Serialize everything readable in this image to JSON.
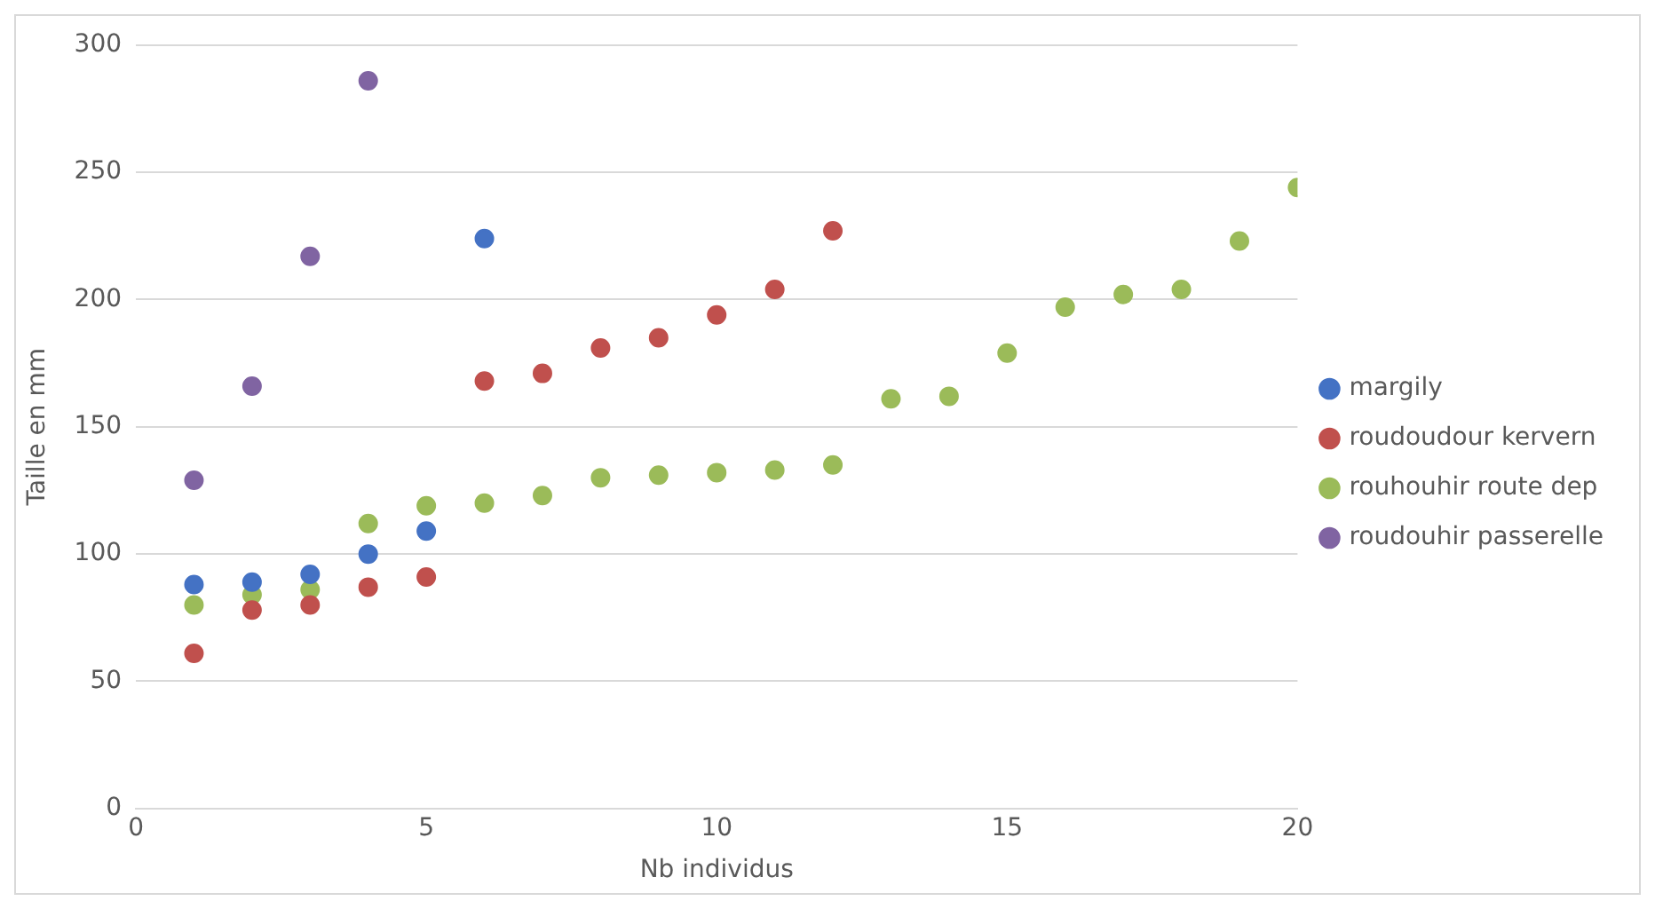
{
  "chart_data": {
    "type": "scatter",
    "xlabel": "Nb individus",
    "ylabel": "Taille en mm",
    "xlim": [
      0,
      20
    ],
    "xticks": [
      0,
      5,
      10,
      15,
      20
    ],
    "ylim": [
      0,
      300
    ],
    "yticks": [
      0,
      50,
      100,
      150,
      200,
      250,
      300
    ],
    "grid": "y",
    "legend": "right",
    "marker": "circle",
    "series": [
      {
        "name": "margily",
        "color": "#4472c4",
        "x": [
          1,
          2,
          3,
          4,
          5,
          6
        ],
        "values": [
          88,
          89,
          92,
          100,
          109,
          224
        ]
      },
      {
        "name": "roudoudour kervern",
        "color": "#c0504d",
        "x": [
          1,
          2,
          3,
          4,
          5,
          6,
          7,
          8,
          9,
          10,
          11,
          12
        ],
        "values": [
          61,
          78,
          80,
          87,
          91,
          168,
          171,
          181,
          185,
          194,
          204,
          227
        ]
      },
      {
        "name": "rouhouhir route dep",
        "color": "#9bbb59",
        "x": [
          1,
          2,
          3,
          4,
          5,
          6,
          7,
          8,
          9,
          10,
          11,
          12,
          13,
          14,
          15,
          16,
          17,
          18,
          19,
          20
        ],
        "values": [
          80,
          84,
          86,
          112,
          119,
          120,
          123,
          130,
          131,
          132,
          133,
          135,
          161,
          162,
          179,
          197,
          202,
          204,
          223,
          244
        ]
      },
      {
        "name": "roudouhir passerelle",
        "color": "#8064a2",
        "x": [
          1,
          2,
          3,
          4
        ],
        "values": [
          129,
          166,
          217,
          286
        ]
      }
    ]
  }
}
